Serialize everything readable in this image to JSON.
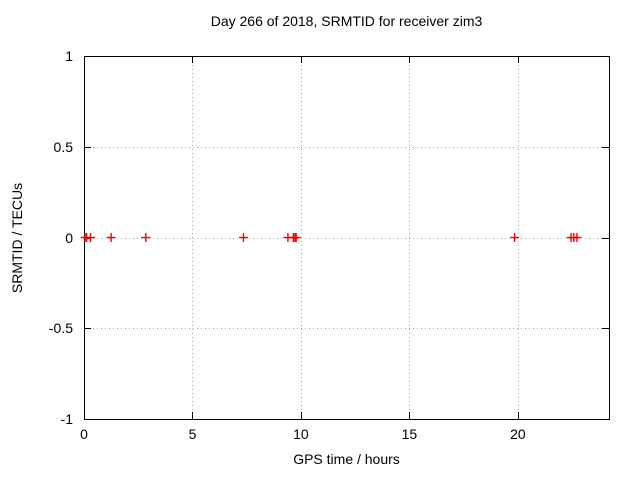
{
  "figure": {
    "background_color": "#ffffff",
    "border_color": "#000000",
    "grid_color": "#a6a6a6",
    "text_color": "#000000"
  },
  "chart_data": {
    "type": "scatter",
    "title": "Day 266 of 2018, SRMTID for receiver zim3",
    "xlabel": "GPS time / hours",
    "ylabel": "SRMTID / TECUs",
    "xlim": [
      0,
      24.2
    ],
    "ylim": [
      -1,
      1
    ],
    "xticks": [
      {
        "v": 0,
        "label": "0"
      },
      {
        "v": 5,
        "label": "5"
      },
      {
        "v": 10,
        "label": "10"
      },
      {
        "v": 15,
        "label": "15"
      },
      {
        "v": 20,
        "label": "20"
      }
    ],
    "yticks": [
      {
        "v": -1,
        "label": "-1"
      },
      {
        "v": -0.5,
        "label": "-0.5"
      },
      {
        "v": 0,
        "label": "0"
      },
      {
        "v": 0.5,
        "label": "0.5"
      },
      {
        "v": 1,
        "label": "1"
      }
    ],
    "grid": true,
    "legend_position": "none",
    "marker": "plus",
    "marker_color": "#ff0000",
    "series": [
      {
        "name": "SRMTID",
        "x": [
          0.05,
          0.12,
          0.3,
          1.25,
          2.85,
          7.35,
          9.4,
          9.65,
          9.72,
          9.78,
          19.85,
          22.45,
          22.58,
          22.72
        ],
        "y": [
          0,
          0,
          0,
          0,
          0,
          0,
          0,
          0,
          0,
          0,
          0,
          0,
          0,
          0
        ]
      }
    ]
  }
}
